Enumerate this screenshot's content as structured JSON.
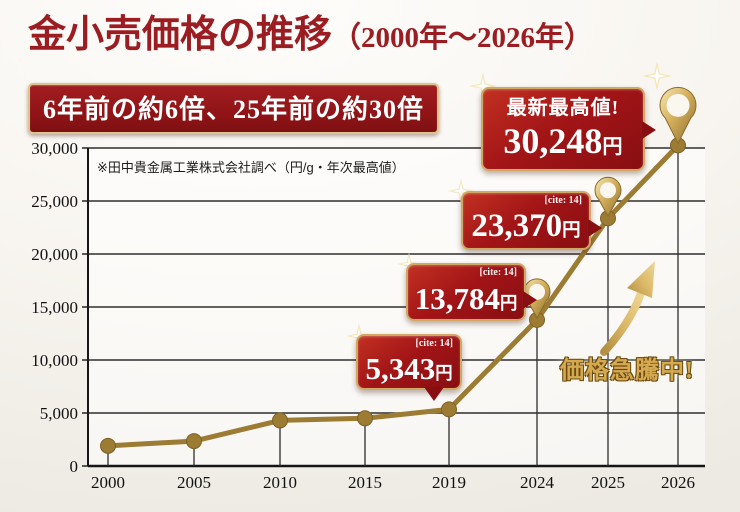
{
  "header": {
    "title_main": "金小売価格の推移",
    "title_paren": "（2000年～2026年）",
    "badge": "6年前の約6倍、25年前の約30倍"
  },
  "chart": {
    "note": "※田中貴金属工業株式会社調べ（円/g・年次最高値）"
  },
  "chart_data": {
    "type": "line",
    "title": "金小売価格の推移（2000年～2026年）",
    "series_name": "金小売価格（円/g・年次最高値）",
    "categories": [
      "2000",
      "2005",
      "2010",
      "2015",
      "2019",
      "2024",
      "2025",
      "2026"
    ],
    "values": [
      1900,
      2350,
      4300,
      4500,
      5343,
      13784,
      23370,
      30248
    ],
    "xlabel": "",
    "ylabel": "",
    "ylim": [
      0,
      30000
    ],
    "y_tick_step": 5000,
    "y_tick_labels": [
      "0",
      "5,000",
      "10,000",
      "15,000",
      "20,000",
      "25,000",
      "30,000"
    ],
    "grid": true,
    "legend": "none",
    "line_color": "#9c7b33",
    "pin_marker_categories": [
      "2024",
      "2025",
      "2026"
    ]
  },
  "callouts": [
    {
      "year": "2019",
      "cite": "[cite: 14]",
      "value": "5,343",
      "unit": "円"
    },
    {
      "year": "2024",
      "cite": "[cite: 14]",
      "value": "13,784",
      "unit": "円"
    },
    {
      "year": "2025",
      "cite": "[cite: 14]",
      "value": "23,370",
      "unit": "円"
    },
    {
      "year": "2026",
      "headline": "最新最高値!",
      "value": "30,248",
      "unit": "円"
    }
  ],
  "annotations": {
    "surge_label": "価格急騰中!"
  },
  "colors": {
    "title_red": "#9b1d22",
    "callout_red": "#a31517",
    "gold_line": "#9c7b33",
    "gold_light": "#d9b563",
    "grid": "#2e2e2e"
  }
}
